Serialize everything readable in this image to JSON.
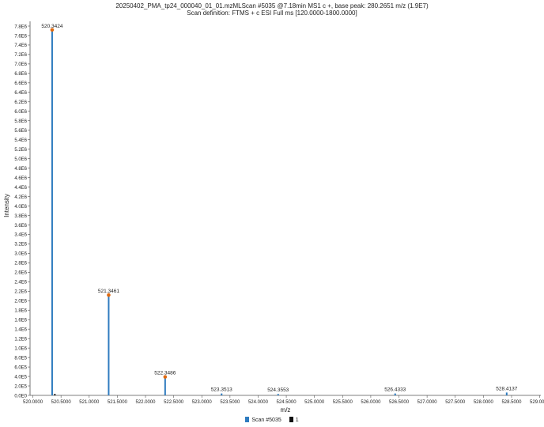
{
  "chart_data": {
    "type": "bar",
    "title": "20250402_PMA_tp24_000040_01_01.mzMLScan #5035 @7.18min MS1 c +, base peak: 280.2651 m/z (1.9E7)",
    "subtitle": "Scan definition: FTMS + c ESI Full ms [120.0000-1800.0000]",
    "xlabel": "m/z",
    "ylabel": "Intensity",
    "xlim": [
      519.95,
      529.02
    ],
    "ylim": [
      0,
      7.9
    ],
    "x_ticks": [
      520.0,
      520.5,
      521.0,
      521.5,
      522.0,
      522.5,
      523.0,
      523.5,
      524.0,
      524.5,
      525.0,
      525.5,
      526.0,
      526.5,
      527.0,
      527.5,
      528.0,
      528.5,
      529.0
    ],
    "x_tick_labels": [
      "520.0000",
      "520.5000",
      "521.0000",
      "521.5000",
      "522.0000",
      "522.5000",
      "523.0000",
      "523.5000",
      "524.0000",
      "524.5000",
      "525.0000",
      "525.5000",
      "526.0000",
      "526.5000",
      "527.0000",
      "527.5000",
      "528.0000",
      "528.5000",
      "529.0000"
    ],
    "y_ticks": [
      0,
      0.2,
      0.4,
      0.6,
      0.8,
      1.0,
      1.2,
      1.4,
      1.6,
      1.8,
      2.0,
      2.2,
      2.4,
      2.6,
      2.8,
      3.0,
      3.2,
      3.4,
      3.6,
      3.8,
      4.0,
      4.2,
      4.4,
      4.6,
      4.8,
      5.0,
      5.2,
      5.4,
      5.6,
      5.8,
      6.0,
      6.2,
      6.4,
      6.6,
      6.8,
      7.0,
      7.2,
      7.4,
      7.6,
      7.8
    ],
    "y_tick_labels": [
      "0.0E0",
      "2.0E5",
      "4.0E5",
      "6.0E5",
      "8.0E5",
      "1.0E6",
      "1.2E6",
      "1.4E6",
      "1.6E6",
      "1.8E6",
      "2.0E6",
      "2.2E6",
      "2.4E6",
      "2.6E6",
      "2.8E6",
      "3.0E6",
      "3.2E6",
      "3.4E6",
      "3.6E6",
      "3.8E6",
      "4.0E6",
      "4.2E6",
      "4.4E6",
      "4.6E6",
      "4.8E6",
      "5.0E6",
      "5.2E6",
      "5.4E6",
      "5.6E6",
      "5.8E6",
      "6.0E6",
      "6.2E6",
      "6.4E6",
      "6.6E6",
      "6.8E6",
      "7.0E6",
      "7.2E6",
      "7.4E6",
      "7.6E6",
      "7.8E6"
    ],
    "series": [
      {
        "name": "Scan #5035",
        "color": "#2e7bbf",
        "points": [
          {
            "x": 520.3424,
            "y": 7.72,
            "label": "520.3424"
          },
          {
            "x": 521.3461,
            "y": 2.12,
            "label": "521.3461"
          },
          {
            "x": 522.3486,
            "y": 0.39,
            "label": "522.3486"
          },
          {
            "x": 523.3513,
            "y": 0.04,
            "label": "523.3513"
          },
          {
            "x": 524.3553,
            "y": 0.03,
            "label": "524.3553"
          },
          {
            "x": 526.4333,
            "y": 0.04,
            "label": "526.4333"
          },
          {
            "x": 528.4137,
            "y": 0.06,
            "label": "528.4137"
          }
        ]
      },
      {
        "name": "1",
        "color": "#111111",
        "points": [
          {
            "x": 520.39,
            "y": 0.03
          }
        ]
      }
    ],
    "marker_color": "#e06a10",
    "grid": false,
    "legend": "bottom-center"
  }
}
